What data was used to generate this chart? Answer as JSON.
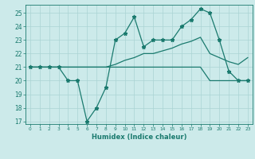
{
  "x": [
    0,
    1,
    2,
    3,
    4,
    5,
    6,
    7,
    8,
    9,
    10,
    11,
    12,
    13,
    14,
    15,
    16,
    17,
    18,
    19,
    20,
    21,
    22,
    23
  ],
  "line1": [
    21,
    21,
    21,
    21,
    20,
    20,
    17,
    18,
    19.5,
    23,
    23.5,
    24.7,
    22.5,
    23,
    23,
    23,
    24,
    24.5,
    25.3,
    25,
    23,
    20.7,
    20,
    20
  ],
  "line2": [
    21,
    21,
    21,
    21,
    21,
    21,
    21,
    21,
    21,
    21.2,
    21.5,
    21.7,
    22,
    22,
    22.2,
    22.4,
    22.7,
    22.9,
    23.2,
    22,
    21.7,
    21.4,
    21.2,
    21.7
  ],
  "line3": [
    21,
    21,
    21,
    21,
    21,
    21,
    21,
    21,
    21,
    21,
    21,
    21,
    21,
    21,
    21,
    21,
    21,
    21,
    21,
    20,
    20,
    20,
    20,
    20
  ],
  "xlabel": "Humidex (Indice chaleur)",
  "bg_color": "#cceaea",
  "line_color": "#1a7a6e",
  "grid_color": "#aad4d4",
  "ylim": [
    16.8,
    25.6
  ],
  "yticks": [
    17,
    18,
    19,
    20,
    21,
    22,
    23,
    24,
    25
  ],
  "xticks": [
    0,
    1,
    2,
    3,
    4,
    5,
    6,
    7,
    8,
    9,
    10,
    11,
    12,
    13,
    14,
    15,
    16,
    17,
    18,
    19,
    20,
    21,
    22,
    23
  ]
}
